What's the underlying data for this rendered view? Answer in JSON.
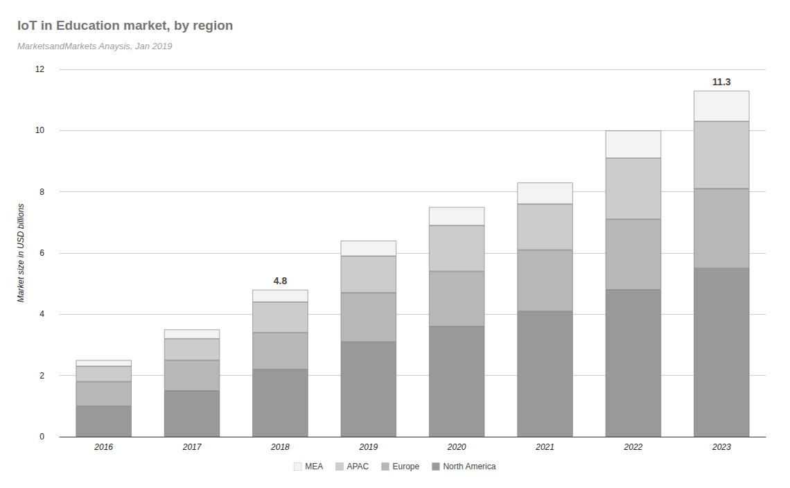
{
  "chart_data": {
    "type": "bar",
    "title": "IoT in Education market, by region",
    "subtitle": "MarketsandMarkets Anaysis, Jan 2019",
    "y_label": "Market size in USD billions",
    "categories": [
      "2016",
      "2017",
      "2018",
      "2019",
      "2020",
      "2021",
      "2022",
      "2023"
    ],
    "series": [
      {
        "name": "North America",
        "color": "#999999",
        "values": [
          1.0,
          1.5,
          2.2,
          3.1,
          3.6,
          4.1,
          4.8,
          5.5
        ]
      },
      {
        "name": "Europe",
        "color": "#b7b7b7",
        "values": [
          0.8,
          1.0,
          1.2,
          1.6,
          1.8,
          2.0,
          2.3,
          2.6
        ]
      },
      {
        "name": "APAC",
        "color": "#cccccc",
        "values": [
          0.5,
          0.7,
          1.0,
          1.2,
          1.5,
          1.5,
          2.0,
          2.2
        ]
      },
      {
        "name": "MEA",
        "color": "#f3f3f3",
        "values": [
          0.2,
          0.3,
          0.4,
          0.5,
          0.6,
          0.7,
          0.9,
          1.0
        ]
      }
    ],
    "annotations": [
      {
        "x": "2018",
        "y": 4.8
      },
      {
        "x": "2023",
        "y": 11.3
      }
    ],
    "ylim": [
      0,
      12
    ],
    "yticks": [
      0,
      2,
      4,
      6,
      8,
      10,
      12
    ],
    "grid": true,
    "stacked": true,
    "legend": "bottom"
  }
}
